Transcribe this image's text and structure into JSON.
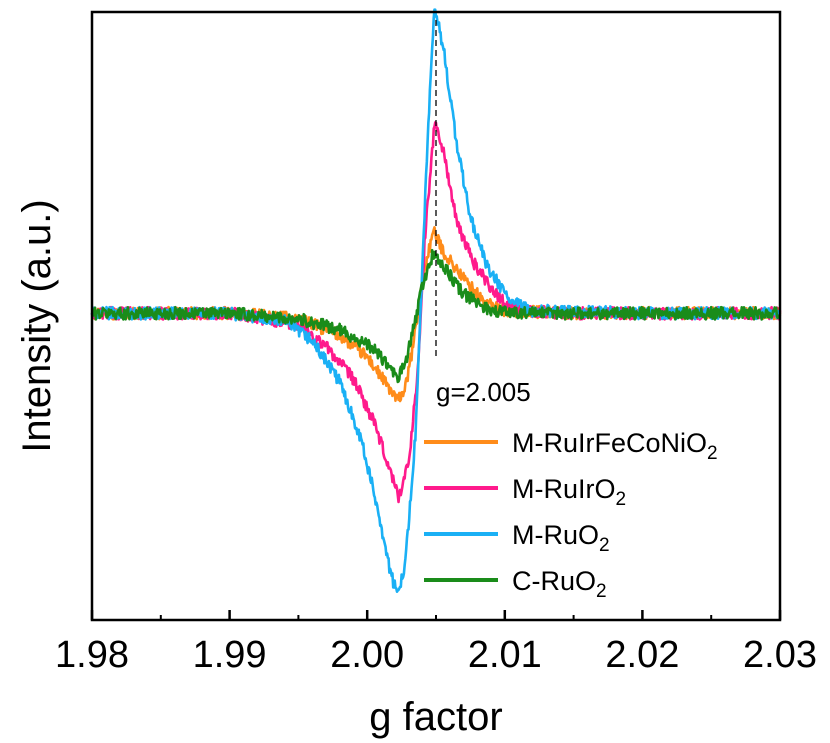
{
  "chart_data": {
    "type": "line",
    "xlabel": "g factor",
    "ylabel": "Intensity (a.u.)",
    "xlim": [
      1.98,
      2.03
    ],
    "ylim": [
      -1.12,
      1.1
    ],
    "x_ticks": [
      1.98,
      1.99,
      2.0,
      2.01,
      2.02,
      2.03
    ],
    "x_tick_labels": [
      "1.98",
      "1.99",
      "2.00",
      "2.01",
      "2.02",
      "2.03"
    ],
    "annotation": {
      "text": "g=2.005",
      "x": 2.005
    },
    "legend_position": "lower-right",
    "grid": false,
    "series": [
      {
        "name_main": "M-RuIrFeCoNiO",
        "name_sub": "2",
        "color": "#ff8c1a",
        "points": [
          [
            1.98,
            0
          ],
          [
            1.99,
            0
          ],
          [
            1.995,
            -0.02
          ],
          [
            1.998,
            -0.08
          ],
          [
            2.0,
            -0.16
          ],
          [
            2.001,
            -0.23
          ],
          [
            2.0022,
            -0.32
          ],
          [
            2.0028,
            -0.27
          ],
          [
            2.0034,
            -0.1
          ],
          [
            2.004,
            0.12
          ],
          [
            2.0048,
            0.3
          ],
          [
            2.0056,
            0.22
          ],
          [
            2.0068,
            0.14
          ],
          [
            2.0085,
            0.04
          ],
          [
            2.01,
            0.01
          ],
          [
            2.015,
            0
          ],
          [
            2.03,
            0
          ]
        ]
      },
      {
        "name_main": "M-RuIrO",
        "name_sub": "2",
        "color": "#ff1a8c",
        "points": [
          [
            1.98,
            0
          ],
          [
            1.99,
            0
          ],
          [
            1.995,
            -0.04
          ],
          [
            1.997,
            -0.12
          ],
          [
            1.999,
            -0.24
          ],
          [
            2.0005,
            -0.4
          ],
          [
            2.0015,
            -0.55
          ],
          [
            2.0023,
            -0.67
          ],
          [
            2.003,
            -0.55
          ],
          [
            2.0037,
            -0.2
          ],
          [
            2.0042,
            0.28
          ],
          [
            2.0049,
            0.7
          ],
          [
            2.0056,
            0.58
          ],
          [
            2.0065,
            0.33
          ],
          [
            2.0078,
            0.18
          ],
          [
            2.0095,
            0.06
          ],
          [
            2.011,
            0.01
          ],
          [
            2.015,
            0
          ],
          [
            2.03,
            0
          ]
        ]
      },
      {
        "name_main": "M-RuO",
        "name_sub": "2",
        "color": "#1ab0f5",
        "points": [
          [
            1.98,
            0
          ],
          [
            1.99,
            0
          ],
          [
            1.994,
            -0.03
          ],
          [
            1.996,
            -0.1
          ],
          [
            1.998,
            -0.25
          ],
          [
            1.9995,
            -0.45
          ],
          [
            2.0008,
            -0.72
          ],
          [
            2.0017,
            -0.95
          ],
          [
            2.0022,
            -1.03
          ],
          [
            2.0028,
            -0.9
          ],
          [
            2.0035,
            -0.45
          ],
          [
            2.004,
            0.15
          ],
          [
            2.0044,
            0.65
          ],
          [
            2.0049,
            1.12
          ],
          [
            2.0056,
            0.95
          ],
          [
            2.0065,
            0.62
          ],
          [
            2.0075,
            0.35
          ],
          [
            2.0088,
            0.16
          ],
          [
            2.0105,
            0.04
          ],
          [
            2.012,
            0.01
          ],
          [
            2.02,
            0
          ],
          [
            2.03,
            0
          ]
        ]
      },
      {
        "name_main": "C-RuO",
        "name_sub": "2",
        "color": "#1a8c1a",
        "points": [
          [
            1.98,
            0
          ],
          [
            1.99,
            0
          ],
          [
            1.995,
            -0.02
          ],
          [
            1.998,
            -0.06
          ],
          [
            2.0005,
            -0.13
          ],
          [
            2.0015,
            -0.19
          ],
          [
            2.0022,
            -0.24
          ],
          [
            2.0028,
            -0.18
          ],
          [
            2.0034,
            -0.05
          ],
          [
            2.004,
            0.1
          ],
          [
            2.0048,
            0.22
          ],
          [
            2.0057,
            0.16
          ],
          [
            2.007,
            0.07
          ],
          [
            2.009,
            0.01
          ],
          [
            2.012,
            0
          ],
          [
            2.03,
            0
          ]
        ]
      }
    ]
  }
}
